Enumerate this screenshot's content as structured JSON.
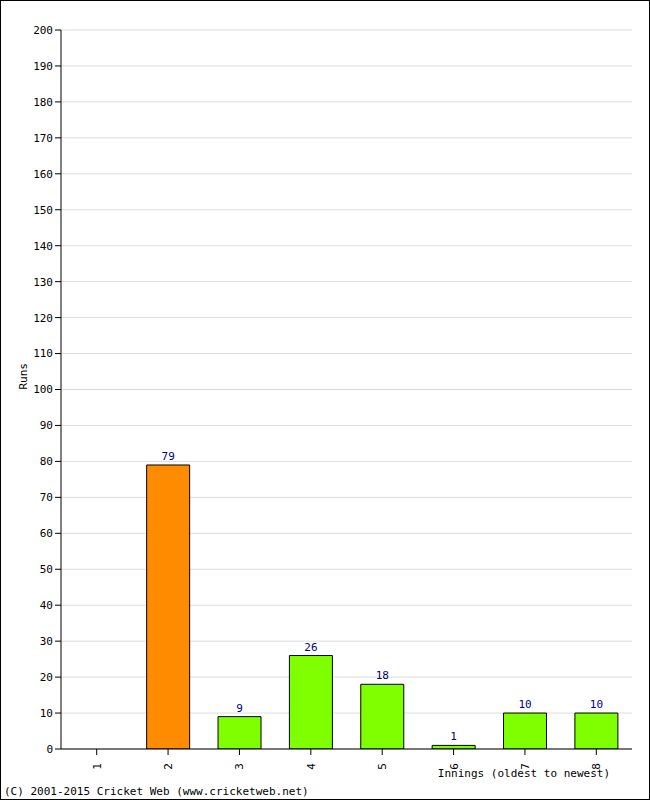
{
  "chart_data": {
    "type": "bar",
    "categories": [
      "1",
      "2",
      "3",
      "4",
      "5",
      "6",
      "7",
      "8"
    ],
    "values": [
      0,
      79,
      9,
      26,
      18,
      1,
      10,
      10
    ],
    "colors": [
      "#80ff00",
      "#ff8c00",
      "#80ff00",
      "#80ff00",
      "#80ff00",
      "#80ff00",
      "#80ff00",
      "#80ff00"
    ],
    "x_label": "Innings (oldest to newest)",
    "y_label": "Runs",
    "ylim": [
      0,
      200
    ],
    "yticks": [
      0,
      10,
      20,
      30,
      40,
      50,
      60,
      70,
      80,
      90,
      100,
      110,
      120,
      130,
      140,
      150,
      160,
      170,
      180,
      190,
      200
    ],
    "grid": true,
    "data_labels": true,
    "annotations": [
      "(C) 2001-2015 Cricket Web (www.cricketweb.net)"
    ]
  }
}
